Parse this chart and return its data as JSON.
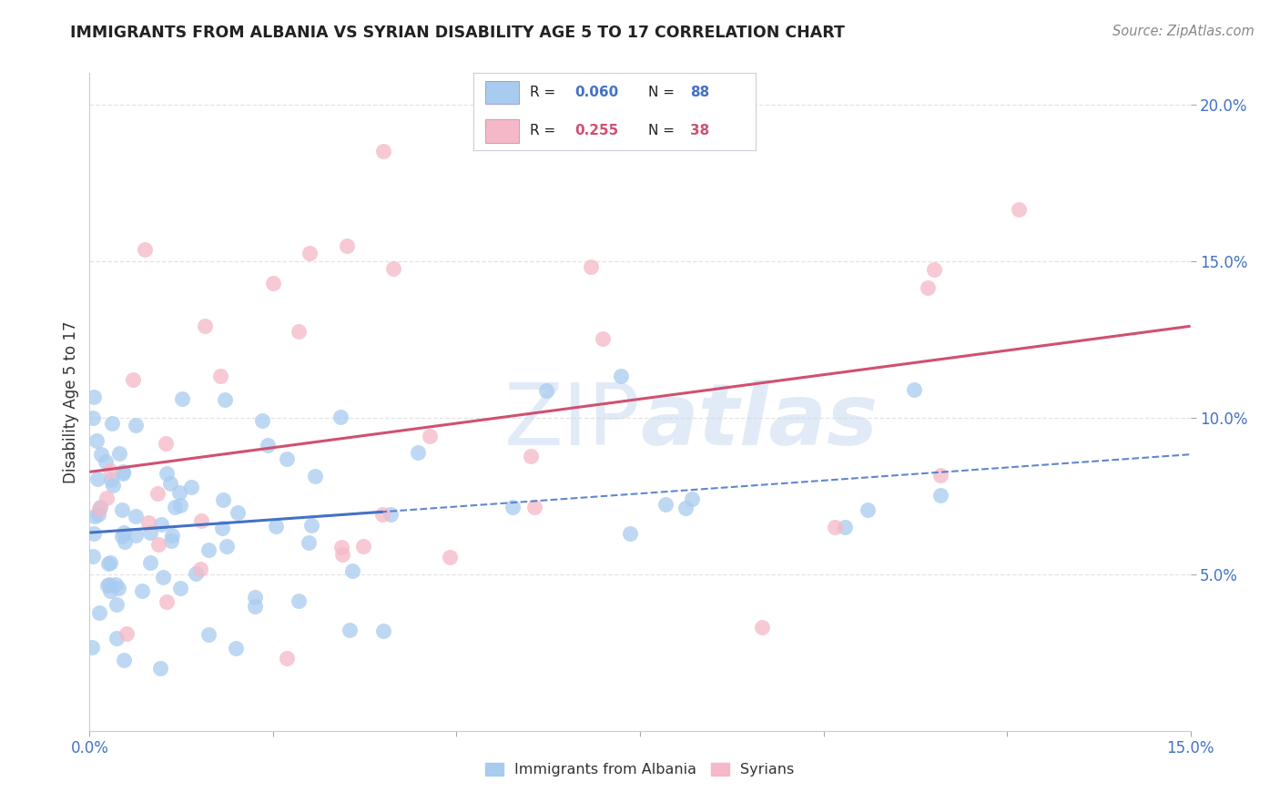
{
  "title": "IMMIGRANTS FROM ALBANIA VS SYRIAN DISABILITY AGE 5 TO 17 CORRELATION CHART",
  "source": "Source: ZipAtlas.com",
  "ylabel": "Disability Age 5 to 17",
  "legend_albania": "Immigrants from Albania",
  "legend_syrians": "Syrians",
  "xlim": [
    0.0,
    0.15
  ],
  "ylim": [
    0.0,
    0.21
  ],
  "color_albania": "#A8CCF0",
  "color_syrians": "#F5B8C8",
  "color_albania_line": "#4472C4",
  "color_syrians_line": "#D05070",
  "color_text_blue": "#4472C4",
  "color_text_pink": "#D05070",
  "color_text_dark": "#222222",
  "color_grid": "#DDDDDD",
  "watermark": "ZIPatlas",
  "background_color": "#ffffff",
  "legend_box_color": "#F0F4FF",
  "legend_box_edge": "#BBBBCC"
}
